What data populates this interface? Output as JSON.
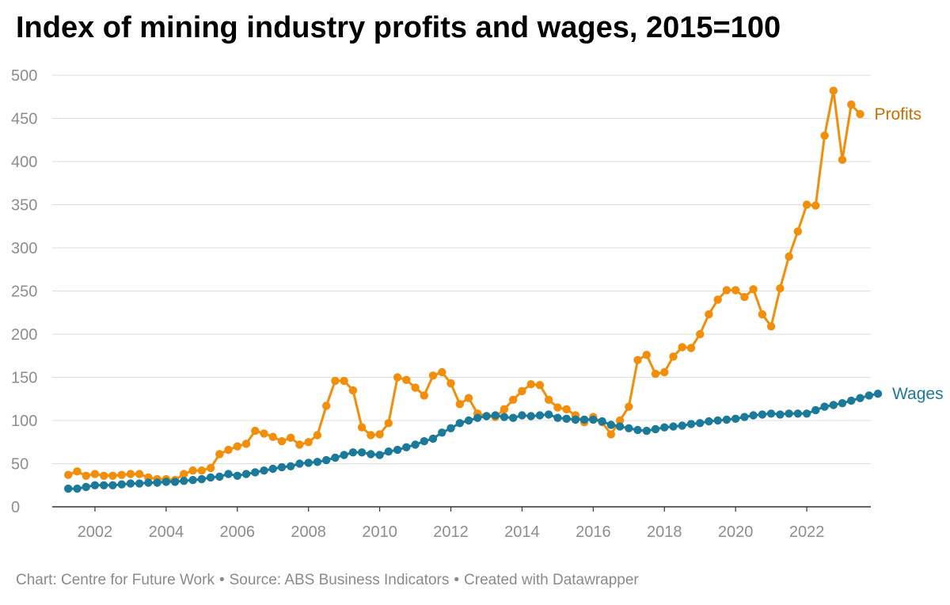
{
  "title": "Index of mining industry profits and wages, 2015=100",
  "footer": {
    "chart_credit": "Chart: Centre for Future Work",
    "source": "Source: ABS Business Indicators",
    "created_with": "Created with Datawrapper"
  },
  "colors": {
    "profits": "#F28E0A",
    "profits_label": "#C96F00",
    "wages": "#1B7A9A",
    "grid": "#DDDDDD",
    "axis": "#333333",
    "tick_text": "#8D8D8D"
  },
  "chart_data": {
    "type": "line",
    "title": "Index of mining industry profits and wages, 2015=100",
    "xlabel": "",
    "ylabel": "",
    "xlim": [
      2000.8,
      2023.8
    ],
    "ylim": [
      0,
      500
    ],
    "y_ticks": [
      0,
      50,
      100,
      150,
      200,
      250,
      300,
      350,
      400,
      450,
      500
    ],
    "x_ticks": [
      2002,
      2004,
      2006,
      2008,
      2010,
      2012,
      2014,
      2016,
      2018,
      2020,
      2022
    ],
    "x_tick_labels": [
      "2002",
      "2004",
      "2006",
      "2008",
      "2010",
      "2012",
      "2014",
      "2016",
      "2018",
      "2020",
      "2022"
    ],
    "grid": true,
    "legend": "inline labels at line ends",
    "x_start": 2001.25,
    "x_step": 0.25,
    "series": [
      {
        "name": "Profits",
        "color": "#F28E0A",
        "values": [
          37,
          41,
          36,
          38,
          36,
          36,
          37,
          38,
          38,
          34,
          32,
          32,
          31,
          38,
          42,
          42,
          45,
          61,
          66,
          70,
          73,
          88,
          85,
          81,
          76,
          80,
          72,
          75,
          83,
          117,
          146,
          146,
          135,
          92,
          83,
          84,
          97,
          150,
          147,
          138,
          129,
          152,
          156,
          143,
          119,
          126,
          108,
          105,
          104,
          113,
          124,
          134,
          142,
          141,
          124,
          115,
          113,
          106,
          98,
          104,
          98,
          84,
          100,
          116,
          170,
          176,
          154,
          156,
          174,
          185,
          184,
          200,
          223,
          240,
          251,
          251,
          243,
          252,
          223,
          209,
          253,
          290,
          319,
          350,
          349,
          430,
          482,
          402,
          466,
          455
        ]
      },
      {
        "name": "Wages",
        "color": "#1B7A9A",
        "values": [
          21,
          21,
          23,
          25,
          25,
          25,
          26,
          27,
          27,
          28,
          28,
          29,
          29,
          30,
          31,
          32,
          34,
          35,
          38,
          36,
          38,
          40,
          42,
          44,
          46,
          47,
          50,
          51,
          52,
          54,
          57,
          60,
          63,
          63,
          61,
          60,
          64,
          66,
          69,
          72,
          76,
          79,
          86,
          91,
          97,
          100,
          103,
          105,
          106,
          104,
          103,
          106,
          105,
          106,
          107,
          103,
          102,
          101,
          101,
          101,
          99,
          95,
          93,
          91,
          89,
          88,
          90,
          92,
          93,
          94,
          96,
          97,
          99,
          100,
          101,
          102,
          104,
          106,
          107,
          108,
          107,
          108,
          108,
          108,
          112,
          116,
          118,
          120,
          123,
          126,
          129,
          131
        ]
      }
    ]
  }
}
